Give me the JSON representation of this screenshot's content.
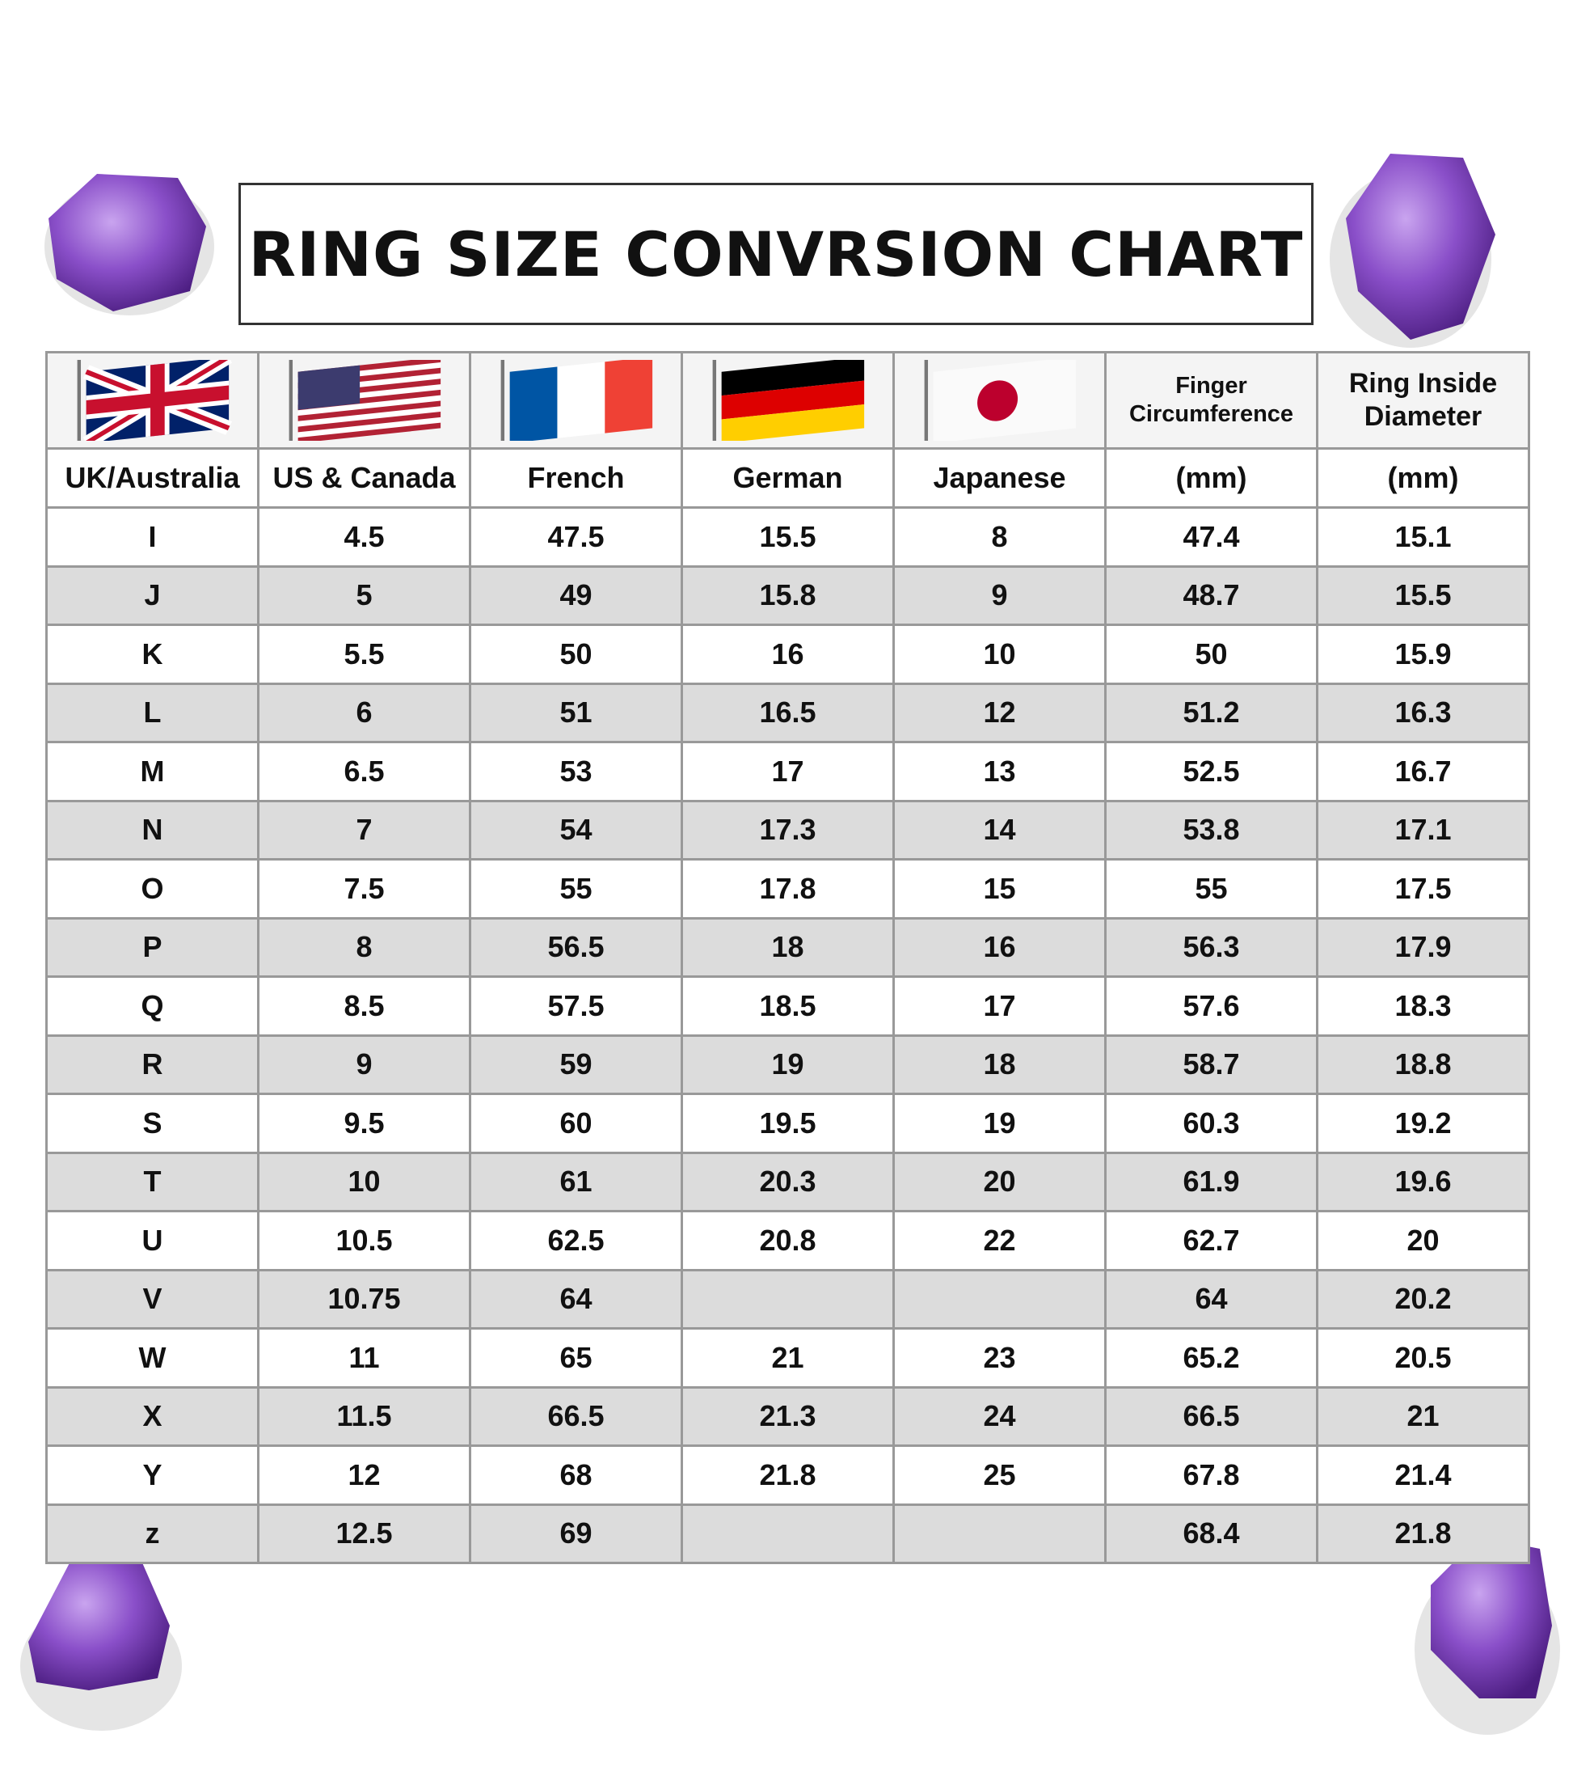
{
  "title": "RING SIZE CONVRSION CHART",
  "header": {
    "top": [
      "Finger Circumference",
      "Ring Inside Diameter"
    ],
    "labels": [
      "UK/Australia",
      "US & Canada",
      "French",
      "German",
      "Japanese",
      "(mm)",
      "(mm)"
    ]
  },
  "rows": [
    [
      "I",
      "4.5",
      "47.5",
      "15.5",
      "8",
      "47.4",
      "15.1"
    ],
    [
      "J",
      "5",
      "49",
      "15.8",
      "9",
      "48.7",
      "15.5"
    ],
    [
      "K",
      "5.5",
      "50",
      "16",
      "10",
      "50",
      "15.9"
    ],
    [
      "L",
      "6",
      "51",
      "16.5",
      "12",
      "51.2",
      "16.3"
    ],
    [
      "M",
      "6.5",
      "53",
      "17",
      "13",
      "52.5",
      "16.7"
    ],
    [
      "N",
      "7",
      "54",
      "17.3",
      "14",
      "53.8",
      "17.1"
    ],
    [
      "O",
      "7.5",
      "55",
      "17.8",
      "15",
      "55",
      "17.5"
    ],
    [
      "P",
      "8",
      "56.5",
      "18",
      "16",
      "56.3",
      "17.9"
    ],
    [
      "Q",
      "8.5",
      "57.5",
      "18.5",
      "17",
      "57.6",
      "18.3"
    ],
    [
      "R",
      "9",
      "59",
      "19",
      "18",
      "58.7",
      "18.8"
    ],
    [
      "S",
      "9.5",
      "60",
      "19.5",
      "19",
      "60.3",
      "19.2"
    ],
    [
      "T",
      "10",
      "61",
      "20.3",
      "20",
      "61.9",
      "19.6"
    ],
    [
      "U",
      "10.5",
      "62.5",
      "20.8",
      "22",
      "62.7",
      "20"
    ],
    [
      "V",
      "10.75",
      "64",
      null,
      null,
      "64",
      "20.2"
    ],
    [
      "W",
      "11",
      "65",
      "21",
      "23",
      "65.2",
      "20.5"
    ],
    [
      "X",
      "11.5",
      "66.5",
      "21.3",
      "24",
      "66.5",
      "21"
    ],
    [
      "Y",
      "12",
      "68",
      "21.8",
      "25",
      "67.8",
      "21.4"
    ],
    [
      "z",
      "12.5",
      "69",
      null,
      null,
      "68.4",
      "21.8"
    ]
  ]
}
